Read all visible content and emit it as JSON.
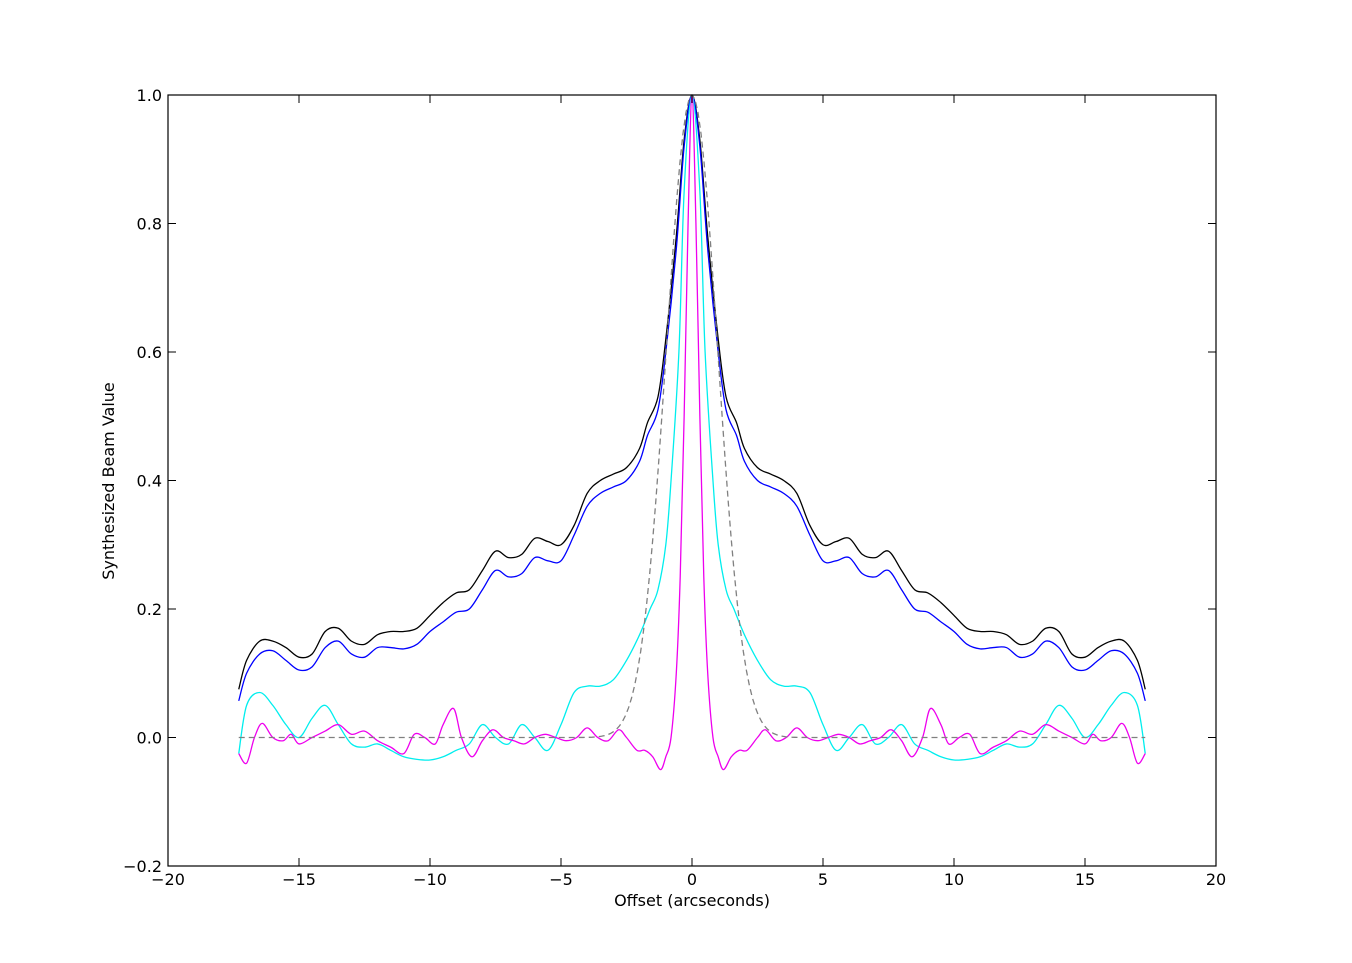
{
  "chart_data": {
    "type": "line",
    "title": "",
    "xlabel": "Offset (arcseconds)",
    "ylabel": "Synthesized Beam Value",
    "xlim": [
      -20,
      20
    ],
    "ylim": [
      -0.2,
      1.0
    ],
    "xticks": [
      -20,
      -15,
      -10,
      -5,
      0,
      5,
      10,
      15,
      20
    ],
    "yticks": [
      -0.2,
      0.0,
      0.2,
      0.4,
      0.6,
      0.8,
      1.0
    ],
    "xtick_labels": [
      "−20",
      "−15",
      "−10",
      "−5",
      "0",
      "5",
      "10",
      "15",
      "20"
    ],
    "ytick_labels": [
      "−0.2",
      "0.0",
      "0.2",
      "0.4",
      "0.6",
      "0.8",
      "1.0"
    ],
    "grid": false,
    "legend": "none",
    "symmetric": true,
    "series": [
      {
        "color": "#000000",
        "style": "solid",
        "x": [
          0,
          0.3,
          0.6,
          1.0,
          1.3,
          1.7,
          2.0,
          2.5,
          3.0,
          3.5,
          4.0,
          4.5,
          5.0,
          5.5,
          6.0,
          6.5,
          7.0,
          7.5,
          8.0,
          8.5,
          9.0,
          9.5,
          10.0,
          10.5,
          11.0,
          11.5,
          12.0,
          12.5,
          13.0,
          13.5,
          14.0,
          14.5,
          15.0,
          15.5,
          16.0,
          16.5,
          17.0,
          17.3
        ],
        "y": [
          1.0,
          0.93,
          0.78,
          0.62,
          0.53,
          0.49,
          0.45,
          0.42,
          0.41,
          0.4,
          0.38,
          0.33,
          0.3,
          0.305,
          0.31,
          0.285,
          0.28,
          0.29,
          0.26,
          0.23,
          0.225,
          0.21,
          0.19,
          0.17,
          0.165,
          0.165,
          0.16,
          0.145,
          0.15,
          0.17,
          0.165,
          0.13,
          0.125,
          0.14,
          0.15,
          0.15,
          0.12,
          0.075
        ]
      },
      {
        "color": "#0000ff",
        "style": "solid",
        "x": [
          0,
          0.3,
          0.6,
          1.0,
          1.3,
          1.7,
          2.0,
          2.5,
          3.0,
          3.5,
          4.0,
          4.5,
          5.0,
          5.5,
          6.0,
          6.5,
          7.0,
          7.5,
          8.0,
          8.5,
          9.0,
          9.5,
          10.0,
          10.5,
          11.0,
          11.5,
          12.0,
          12.5,
          13.0,
          13.5,
          14.0,
          14.5,
          15.0,
          15.5,
          16.0,
          16.5,
          17.0,
          17.3
        ],
        "y": [
          1.0,
          0.92,
          0.76,
          0.6,
          0.51,
          0.47,
          0.43,
          0.4,
          0.39,
          0.38,
          0.36,
          0.315,
          0.275,
          0.275,
          0.28,
          0.255,
          0.25,
          0.26,
          0.23,
          0.2,
          0.195,
          0.18,
          0.165,
          0.145,
          0.138,
          0.14,
          0.14,
          0.125,
          0.13,
          0.15,
          0.14,
          0.11,
          0.105,
          0.12,
          0.135,
          0.13,
          0.1,
          0.057
        ]
      },
      {
        "color": "#00eeee",
        "style": "solid",
        "x": [
          0,
          0.3,
          0.5,
          0.8,
          1.0,
          1.3,
          1.6,
          2.0,
          2.5,
          3.0,
          3.5,
          4.0,
          4.5,
          5.0,
          5.5,
          6.0,
          6.5,
          7.0,
          7.5,
          8.0,
          8.5,
          9.0,
          9.5,
          10.0,
          10.5,
          11.0,
          11.5,
          12.0,
          12.5,
          13.0,
          13.5,
          14.0,
          14.5,
          15.0,
          15.5,
          16.0,
          16.5,
          17.0,
          17.3
        ],
        "y": [
          1.0,
          0.85,
          0.6,
          0.4,
          0.3,
          0.23,
          0.2,
          0.16,
          0.12,
          0.09,
          0.08,
          0.08,
          0.07,
          0.02,
          -0.02,
          0.0,
          0.02,
          -0.01,
          0.0,
          0.02,
          -0.01,
          -0.02,
          -0.03,
          -0.035,
          -0.034,
          -0.03,
          -0.02,
          -0.01,
          -0.015,
          -0.01,
          0.02,
          0.05,
          0.03,
          0.0,
          0.02,
          0.05,
          0.07,
          0.05,
          -0.025
        ]
      },
      {
        "color": "#ee00ee",
        "style": "solid",
        "x": [
          0,
          0.15,
          0.3,
          0.45,
          0.6,
          0.8,
          1.0,
          1.2,
          1.5,
          1.8,
          2.1,
          2.5,
          2.8,
          3.2,
          3.6,
          4.0,
          4.4,
          4.8,
          5.2,
          5.6,
          6.0,
          6.4,
          6.8,
          7.2,
          7.6,
          8.0,
          8.4,
          8.8,
          9.1,
          9.5,
          9.8,
          10.2,
          10.6,
          11.0,
          11.5,
          12.0,
          12.5,
          13.0,
          13.5,
          14.0,
          14.5,
          15.0,
          15.3,
          15.6,
          16.0,
          16.4,
          16.7,
          17.0,
          17.3
        ],
        "y": [
          1.0,
          0.8,
          0.5,
          0.25,
          0.1,
          0.0,
          -0.03,
          -0.05,
          -0.03,
          -0.02,
          -0.02,
          0.0,
          0.012,
          -0.005,
          0.0,
          0.015,
          0.0,
          -0.005,
          0.0,
          0.005,
          0.0,
          -0.01,
          -0.005,
          0.0,
          0.012,
          -0.005,
          -0.03,
          0.0,
          0.045,
          0.02,
          -0.01,
          0.0,
          0.005,
          -0.025,
          -0.015,
          -0.005,
          0.01,
          0.005,
          0.02,
          0.01,
          0.0,
          -0.01,
          0.005,
          -0.005,
          0.0,
          0.022,
          0.0,
          -0.04,
          -0.025
        ]
      },
      {
        "color": "#808080",
        "style": "dashed",
        "gaussian": {
          "amplitude": 1.0,
          "fwhm": 2.3
        },
        "xmax": 17.3
      }
    ]
  }
}
